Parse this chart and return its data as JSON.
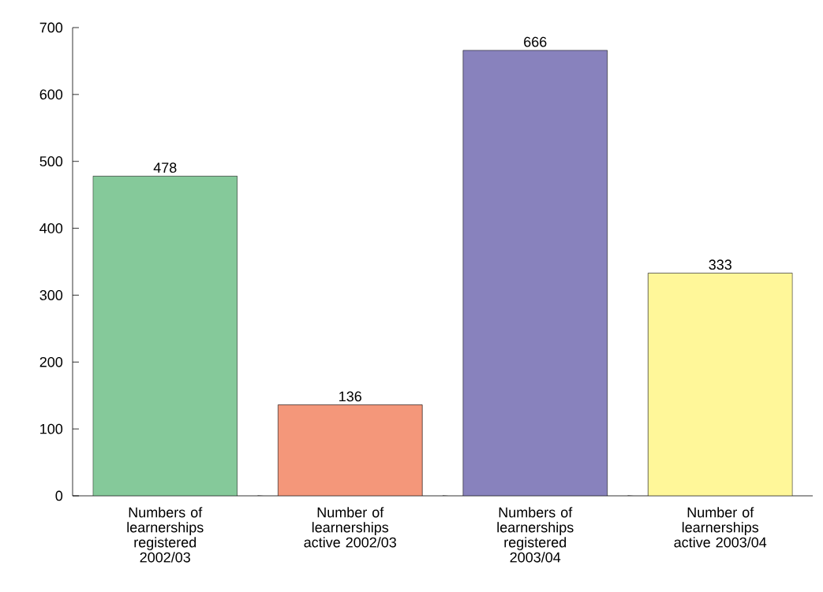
{
  "chart_data": {
    "type": "bar",
    "categories": [
      "Numbers of learnerships registered 2002/03",
      "Number of learnerships active 2002/03",
      "Numbers of learnerships registered 2003/04",
      "Number of learnerships active 2003/04"
    ],
    "values": [
      478,
      136,
      666,
      333
    ],
    "colors": [
      "#85c99a",
      "#f4977a",
      "#8882bd",
      "#fff799"
    ],
    "ylim": [
      0,
      700
    ],
    "yticks": [
      0,
      100,
      200,
      300,
      400,
      500,
      600,
      700
    ],
    "data_labels": true,
    "grid": false
  }
}
